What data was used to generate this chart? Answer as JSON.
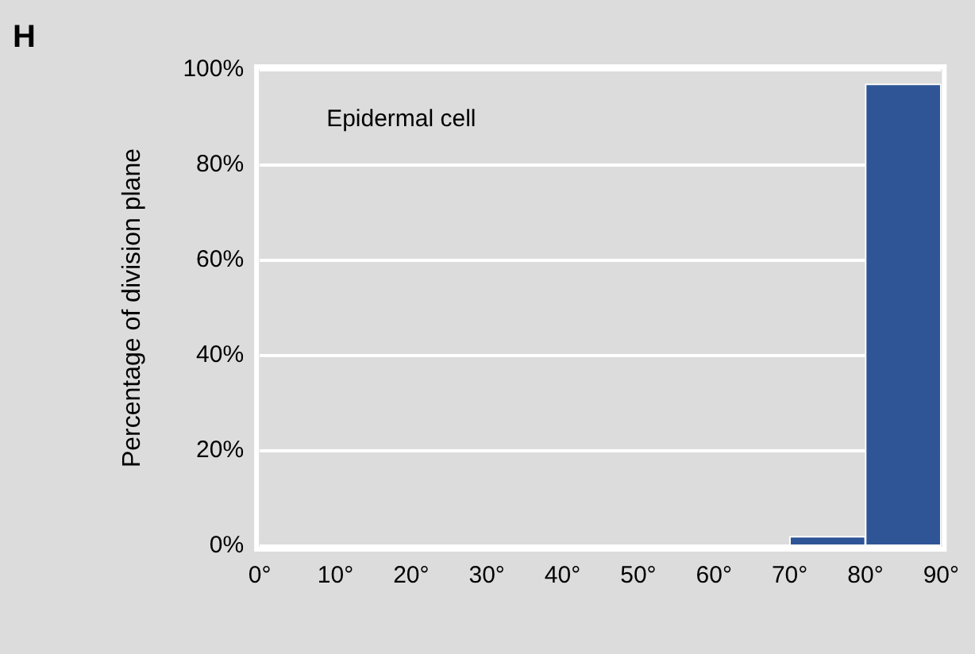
{
  "chart_data": {
    "type": "histogram",
    "annotations": [
      "H",
      "Epidermal cell"
    ],
    "ylabel": "Percentage of division plane",
    "bins": [
      0,
      10,
      20,
      30,
      40,
      50,
      60,
      70,
      80,
      90
    ],
    "values": [
      0,
      0,
      0,
      0,
      0,
      0,
      0,
      2,
      97
    ],
    "color": "#2f5597",
    "xlim": [
      0,
      90
    ],
    "xticks": [
      {
        "value": 0,
        "label": "0°"
      },
      {
        "value": 10,
        "label": "10°"
      },
      {
        "value": 20,
        "label": "20°"
      },
      {
        "value": 30,
        "label": "30°"
      },
      {
        "value": 40,
        "label": "40°"
      },
      {
        "value": 50,
        "label": "50°"
      },
      {
        "value": 60,
        "label": "60°"
      },
      {
        "value": 70,
        "label": "70°"
      },
      {
        "value": 80,
        "label": "80°"
      },
      {
        "value": 90,
        "label": "90°"
      }
    ],
    "ylim": [
      0,
      100
    ],
    "yticks": [
      {
        "value": 0,
        "label": "0%"
      },
      {
        "value": 20,
        "label": "20%"
      },
      {
        "value": 40,
        "label": "40%"
      },
      {
        "value": 60,
        "label": "60%"
      },
      {
        "value": 80,
        "label": "80%"
      },
      {
        "value": 100,
        "label": "100%"
      }
    ],
    "grid": "y",
    "legend": false
  }
}
